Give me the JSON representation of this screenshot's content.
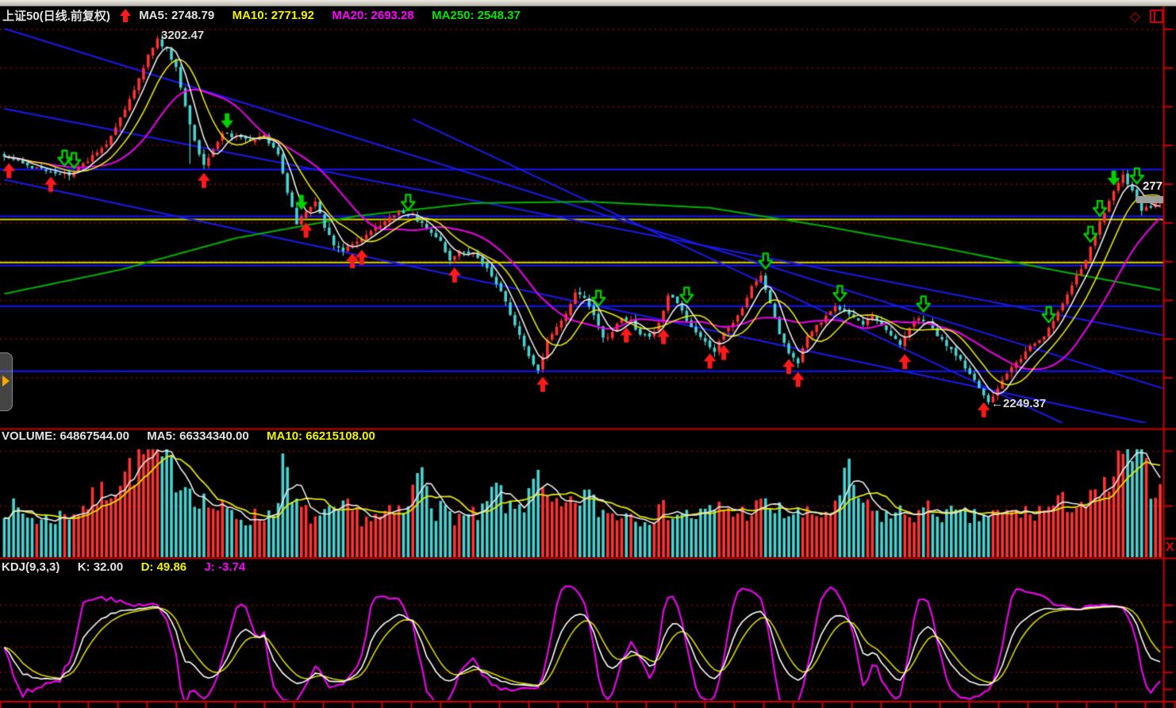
{
  "header": {
    "symbol": "上证50(日线.前复权)",
    "signal_icon": "up-arrow",
    "ma5": "MA5: 2748.79",
    "ma10": "MA10: 2771.92",
    "ma20": "MA20: 2693.28",
    "ma250": "MA250: 2548.37"
  },
  "corner_icons": {
    "diamond_glyph": "◇",
    "split_window": "split-window-icon"
  },
  "volume_header": {
    "volume": "VOLUME: 64867544.00",
    "ma5": "MA5: 66334340.00",
    "ma10": "MA10: 66215108.00"
  },
  "kdj_header": {
    "title": "KDJ(9,3,3)",
    "k": "K: 32.00",
    "d": "D: 49.86",
    "j": "J: -3.74"
  },
  "labels": {
    "peak": "3202.47",
    "trough": "←2249.37",
    "last_price": "277",
    "close_button": "X"
  },
  "colors": {
    "background": "#000000",
    "grid_dotted": "#b40000",
    "separator": "#cc0000",
    "axis": "#cc0000",
    "candle_up": "#ff3232",
    "candle_down": "#49d1d1",
    "ma5": "#eaeaea",
    "ma10": "#e6e600",
    "ma20": "#ee00ee",
    "ma250": "#00b400",
    "level_blue": "#1515ff",
    "level_yellow": "#d6d600",
    "trendline": "#1a1aee",
    "kdj_k": "#ffffff",
    "kdj_d": "#d8d800",
    "kdj_j": "#ff00ff",
    "buy_arrow": "#ff1a1a",
    "sell_arrow": "#00d000"
  },
  "chart_data": [
    {
      "type": "candlestick",
      "name": "上证50 daily price",
      "bars": 250,
      "price_peak": 3202.47,
      "price_trough": 2249.37,
      "ma_current": {
        "ma5": 2748.79,
        "ma10": 2771.92,
        "ma20": 2693.28,
        "ma250": 2548.37
      },
      "grid_price_top": 3220,
      "grid_price_step": 100,
      "grid_lines": 10,
      "close_anchors": [
        [
          0,
          2890
        ],
        [
          5,
          2868
        ],
        [
          10,
          2850
        ],
        [
          14,
          2845
        ],
        [
          18,
          2880
        ],
        [
          22,
          2920
        ],
        [
          26,
          3015
        ],
        [
          29,
          3090
        ],
        [
          31,
          3150
        ],
        [
          33,
          3193
        ],
        [
          35,
          3165
        ],
        [
          37,
          3120
        ],
        [
          39,
          3020
        ],
        [
          41,
          2930
        ],
        [
          43,
          2870
        ],
        [
          45,
          2905
        ],
        [
          47,
          2950
        ],
        [
          50,
          2940
        ],
        [
          53,
          2930
        ],
        [
          56,
          2945
        ],
        [
          59,
          2895
        ],
        [
          61,
          2800
        ],
        [
          63,
          2720
        ],
        [
          65,
          2745
        ],
        [
          67,
          2772
        ],
        [
          69,
          2710
        ],
        [
          71,
          2662
        ],
        [
          73,
          2648
        ],
        [
          75,
          2665
        ],
        [
          77,
          2675
        ],
        [
          79,
          2695
        ],
        [
          82,
          2725
        ],
        [
          85,
          2745
        ],
        [
          88,
          2738
        ],
        [
          91,
          2705
        ],
        [
          94,
          2670
        ],
        [
          96,
          2625
        ],
        [
          98,
          2645
        ],
        [
          101,
          2638
        ],
        [
          104,
          2605
        ],
        [
          107,
          2545
        ],
        [
          110,
          2455
        ],
        [
          113,
          2375
        ],
        [
          115,
          2340
        ],
        [
          117,
          2415
        ],
        [
          119,
          2450
        ],
        [
          121,
          2480
        ],
        [
          123,
          2540
        ],
        [
          125,
          2525
        ],
        [
          127,
          2480
        ],
        [
          129,
          2420
        ],
        [
          131,
          2435
        ],
        [
          133,
          2475
        ],
        [
          135,
          2465
        ],
        [
          137,
          2430
        ],
        [
          139,
          2425
        ],
        [
          141,
          2460
        ],
        [
          143,
          2530
        ],
        [
          145,
          2515
        ],
        [
          147,
          2470
        ],
        [
          149,
          2435
        ],
        [
          151,
          2415
        ],
        [
          153,
          2385
        ],
        [
          155,
          2435
        ],
        [
          157,
          2465
        ],
        [
          159,
          2500
        ],
        [
          161,
          2555
        ],
        [
          163,
          2580
        ],
        [
          165,
          2510
        ],
        [
          167,
          2435
        ],
        [
          169,
          2385
        ],
        [
          171,
          2360
        ],
        [
          173,
          2425
        ],
        [
          175,
          2455
        ],
        [
          177,
          2475
        ],
        [
          179,
          2500
        ],
        [
          181,
          2490
        ],
        [
          183,
          2475
        ],
        [
          185,
          2460
        ],
        [
          187,
          2480
        ],
        [
          189,
          2455
        ],
        [
          191,
          2425
        ],
        [
          193,
          2405
        ],
        [
          195,
          2450
        ],
        [
          197,
          2475
        ],
        [
          199,
          2460
        ],
        [
          201,
          2425
        ],
        [
          203,
          2405
        ],
        [
          205,
          2380
        ],
        [
          207,
          2345
        ],
        [
          209,
          2310
        ],
        [
          211,
          2270
        ],
        [
          212,
          2255
        ],
        [
          214,
          2290
        ],
        [
          216,
          2330
        ],
        [
          218,
          2355
        ],
        [
          220,
          2385
        ],
        [
          222,
          2410
        ],
        [
          224,
          2430
        ],
        [
          226,
          2465
        ],
        [
          228,
          2510
        ],
        [
          230,
          2560
        ],
        [
          232,
          2600
        ],
        [
          234,
          2655
        ],
        [
          236,
          2720
        ],
        [
          239,
          2800
        ],
        [
          241,
          2840
        ],
        [
          243,
          2805
        ],
        [
          245,
          2750
        ],
        [
          247,
          2762
        ],
        [
          249,
          2774
        ]
      ],
      "ma250_anchors": [
        [
          0,
          2536
        ],
        [
          25,
          2598
        ],
        [
          50,
          2680
        ],
        [
          76,
          2737
        ],
        [
          101,
          2770
        ],
        [
          126,
          2774
        ],
        [
          152,
          2758
        ],
        [
          177,
          2710
        ],
        [
          202,
          2655
        ],
        [
          224,
          2602
        ],
        [
          249,
          2546
        ]
      ],
      "levels": [
        {
          "price": 2858,
          "color": "blue"
        },
        {
          "price": 2737,
          "color": "blue"
        },
        {
          "price": 2729,
          "color": "yellow"
        },
        {
          "price": 2618,
          "color": "yellow"
        },
        {
          "price": 2610,
          "color": "blue"
        },
        {
          "price": 2505,
          "color": "blue"
        },
        {
          "price": 2337,
          "color": "blue"
        }
      ],
      "trendlines": [
        [
          [
            0,
            3221
          ],
          [
            250,
            2290
          ]
        ],
        [
          [
            0,
            3014
          ],
          [
            250,
            2428
          ]
        ],
        [
          [
            88,
            2987
          ],
          [
            228,
            2202
          ]
        ],
        [
          [
            0,
            2831
          ],
          [
            246,
            2202
          ]
        ]
      ],
      "signals": {
        "buy_bars": [
          1,
          10,
          43,
          65,
          75,
          77,
          97,
          116,
          134,
          142,
          152,
          155,
          169,
          171,
          194,
          211
        ],
        "sell_outline_bars": [
          13,
          15,
          87,
          128,
          147,
          164,
          180,
          198,
          225,
          234,
          236,
          244
        ],
        "sell_solid_bars": [
          48,
          64,
          239
        ]
      }
    },
    {
      "type": "bar",
      "name": "VOLUME",
      "current": 64867544.0,
      "ma5": 66334340.0,
      "ma10": 66215108.0,
      "rel_anchors": [
        [
          0,
          0.48
        ],
        [
          4,
          0.4
        ],
        [
          8,
          0.34
        ],
        [
          12,
          0.38
        ],
        [
          16,
          0.44
        ],
        [
          20,
          0.55
        ],
        [
          24,
          0.7
        ],
        [
          28,
          0.85
        ],
        [
          31,
          0.97
        ],
        [
          34,
          0.88
        ],
        [
          37,
          0.78
        ],
        [
          40,
          0.66
        ],
        [
          43,
          0.52
        ],
        [
          46,
          0.44
        ],
        [
          49,
          0.4
        ],
        [
          52,
          0.36
        ],
        [
          55,
          0.38
        ],
        [
          58,
          0.42
        ],
        [
          60,
          0.88
        ],
        [
          62,
          0.5
        ],
        [
          65,
          0.4
        ],
        [
          68,
          0.36
        ],
        [
          71,
          0.4
        ],
        [
          74,
          0.44
        ],
        [
          77,
          0.38
        ],
        [
          80,
          0.36
        ],
        [
          84,
          0.4
        ],
        [
          87,
          0.44
        ],
        [
          90,
          0.92
        ],
        [
          93,
          0.44
        ],
        [
          96,
          0.4
        ],
        [
          100,
          0.36
        ],
        [
          103,
          0.4
        ],
        [
          106,
          0.65
        ],
        [
          109,
          0.42
        ],
        [
          112,
          0.5
        ],
        [
          114,
          0.85
        ],
        [
          116,
          0.55
        ],
        [
          119,
          0.44
        ],
        [
          122,
          0.46
        ],
        [
          125,
          0.6
        ],
        [
          128,
          0.44
        ],
        [
          131,
          0.4
        ],
        [
          134,
          0.42
        ],
        [
          137,
          0.38
        ],
        [
          140,
          0.4
        ],
        [
          143,
          0.44
        ],
        [
          146,
          0.4
        ],
        [
          149,
          0.38
        ],
        [
          152,
          0.42
        ],
        [
          155,
          0.46
        ],
        [
          158,
          0.4
        ],
        [
          161,
          0.44
        ],
        [
          164,
          0.48
        ],
        [
          167,
          0.42
        ],
        [
          170,
          0.4
        ],
        [
          173,
          0.38
        ],
        [
          176,
          0.4
        ],
        [
          179,
          0.44
        ],
        [
          182,
          0.78
        ],
        [
          185,
          0.46
        ],
        [
          188,
          0.4
        ],
        [
          191,
          0.38
        ],
        [
          194,
          0.42
        ],
        [
          197,
          0.4
        ],
        [
          200,
          0.44
        ],
        [
          203,
          0.4
        ],
        [
          206,
          0.38
        ],
        [
          209,
          0.36
        ],
        [
          212,
          0.4
        ],
        [
          215,
          0.38
        ],
        [
          218,
          0.42
        ],
        [
          221,
          0.4
        ],
        [
          224,
          0.44
        ],
        [
          227,
          0.48
        ],
        [
          230,
          0.52
        ],
        [
          233,
          0.5
        ],
        [
          236,
          0.55
        ],
        [
          239,
          0.75
        ],
        [
          241,
          0.88
        ],
        [
          243,
          0.97
        ],
        [
          245,
          0.85
        ],
        [
          247,
          0.72
        ],
        [
          249,
          0.6
        ]
      ]
    },
    {
      "type": "line",
      "name": "KDJ",
      "params": [
        9,
        3,
        3
      ],
      "k": 32.0,
      "d": 49.86,
      "j": -3.74,
      "grid_values": [
        100,
        80,
        50,
        20,
        0
      ]
    }
  ]
}
